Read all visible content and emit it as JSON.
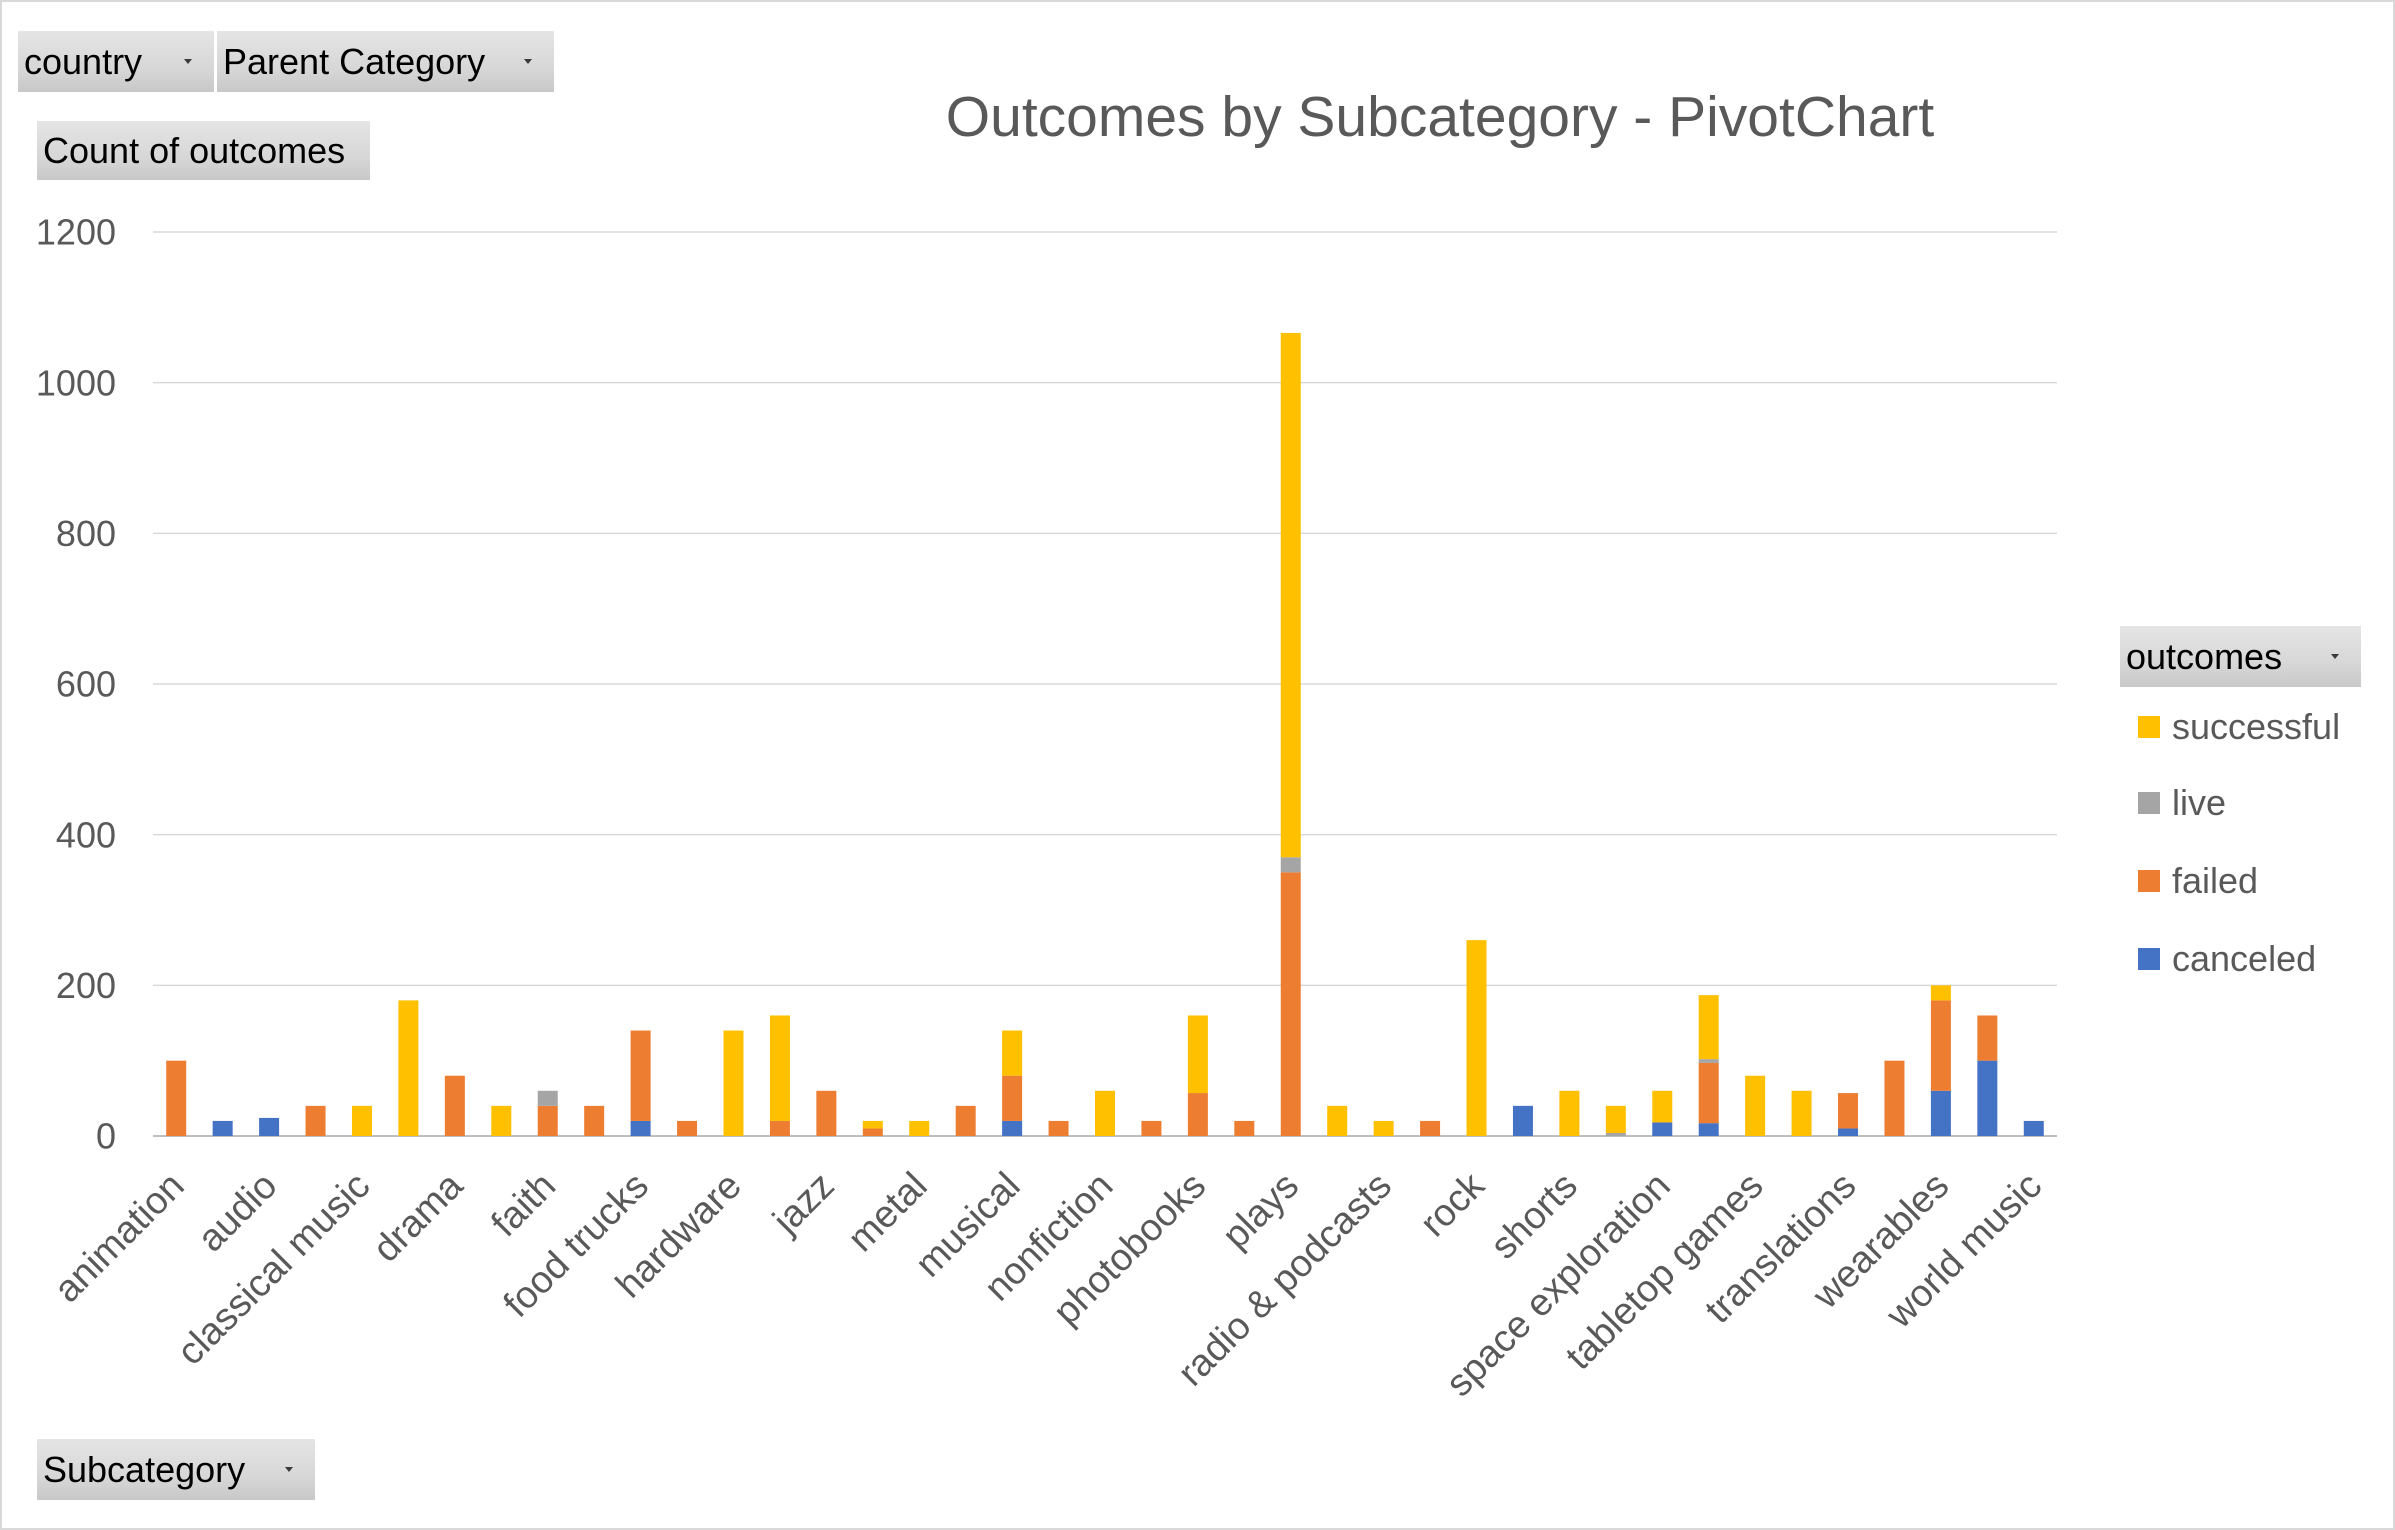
{
  "pivot_fields": {
    "report_filters": [
      {
        "label": "country",
        "icon": "dropdown-arrow-icon"
      },
      {
        "label": "Parent Category",
        "icon": "dropdown-arrow-icon"
      }
    ],
    "values": {
      "label": "Count of outcomes"
    },
    "axis": {
      "label": "Subcategory",
      "icon": "dropdown-arrow-icon"
    },
    "legend": {
      "label": "outcomes",
      "icon": "dropdown-arrow-icon"
    }
  },
  "chart_data": {
    "type": "bar",
    "stacked": true,
    "title": "Outcomes by Subcategory - PivotChart",
    "xlabel": "",
    "ylabel": "",
    "ylim": [
      0,
      1200
    ],
    "yticks": [
      0,
      200,
      400,
      600,
      800,
      1000,
      1200
    ],
    "grid": true,
    "legend_position": "right",
    "categories": [
      "animation",
      "",
      "audio",
      "",
      "classical music",
      "",
      "drama",
      "",
      "faith",
      "",
      "food trucks",
      "",
      "hardware",
      "",
      "jazz",
      "",
      "metal",
      "",
      "musical",
      "",
      "nonfiction",
      "",
      "photobooks",
      "",
      "plays",
      "",
      "radio & podcasts",
      "",
      "rock",
      "",
      "shorts",
      "",
      "space exploration",
      "",
      "tabletop games",
      "",
      "translations",
      "",
      "wearables",
      "",
      "world music"
    ],
    "series": [
      {
        "name": "successful",
        "color": "#FFC000",
        "values": [
          0,
          0,
          0,
          0,
          40,
          180,
          0,
          40,
          0,
          0,
          0,
          0,
          140,
          140,
          0,
          10,
          20,
          0,
          60,
          0,
          60,
          0,
          103,
          0,
          696,
          40,
          20,
          0,
          260,
          0,
          60,
          36,
          42,
          85,
          80,
          60,
          0,
          0,
          20,
          0,
          0
        ]
      },
      {
        "name": "live",
        "color": "#A5A5A5",
        "values": [
          0,
          0,
          0,
          0,
          0,
          0,
          0,
          0,
          20,
          0,
          0,
          0,
          0,
          0,
          0,
          0,
          0,
          0,
          0,
          0,
          0,
          0,
          0,
          0,
          20,
          0,
          0,
          0,
          0,
          0,
          0,
          4,
          0,
          5,
          0,
          0,
          0,
          0,
          0,
          0,
          0
        ]
      },
      {
        "name": "failed",
        "color": "#ED7D31",
        "values": [
          100,
          0,
          0,
          40,
          0,
          0,
          80,
          0,
          40,
          40,
          120,
          20,
          0,
          20,
          60,
          10,
          0,
          40,
          60,
          20,
          0,
          20,
          57,
          20,
          350,
          0,
          0,
          20,
          0,
          0,
          0,
          0,
          0,
          80,
          0,
          0,
          47,
          100,
          120,
          60,
          0
        ]
      },
      {
        "name": "canceled",
        "color": "#4472C4",
        "values": [
          0,
          20,
          24,
          0,
          0,
          0,
          0,
          0,
          0,
          0,
          20,
          0,
          0,
          0,
          0,
          0,
          0,
          0,
          20,
          0,
          0,
          0,
          0,
          0,
          0,
          0,
          0,
          0,
          0,
          40,
          0,
          0,
          18,
          17,
          0,
          0,
          10,
          0,
          60,
          100,
          20
        ]
      }
    ]
  }
}
